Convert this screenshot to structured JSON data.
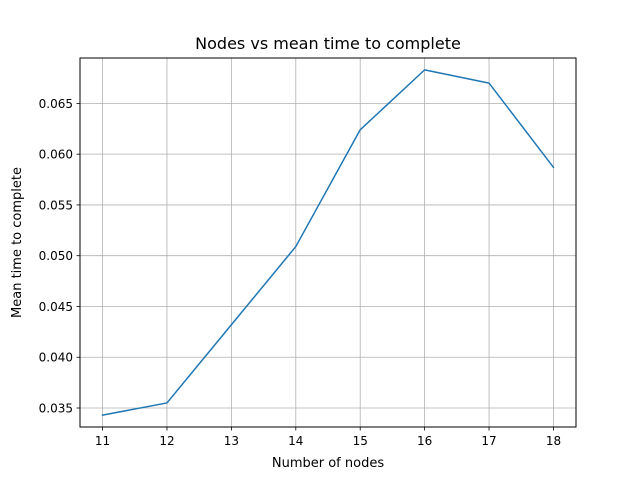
{
  "chart_data": {
    "type": "line",
    "title": "Nodes vs mean time to complete",
    "xlabel": "Number of nodes",
    "ylabel": "Mean time to complete",
    "x": [
      11,
      12,
      13,
      14,
      15,
      16,
      17,
      18
    ],
    "xticks": [
      "11",
      "12",
      "13",
      "14",
      "15",
      "16",
      "17",
      "18"
    ],
    "yticks": [
      "0.035",
      "0.040",
      "0.045",
      "0.050",
      "0.055",
      "0.060",
      "0.065"
    ],
    "series": [
      {
        "values": [
          0.0343,
          0.0355,
          0.0432,
          0.0509,
          0.0624,
          0.0683,
          0.067,
          0.0587
        ],
        "color": "#1f77b4"
      }
    ],
    "xlim": [
      10.65,
      18.35
    ],
    "ylim": [
      0.03313,
      0.06947
    ],
    "grid": true,
    "grid_color": "#b0b0b0",
    "legend": false
  }
}
